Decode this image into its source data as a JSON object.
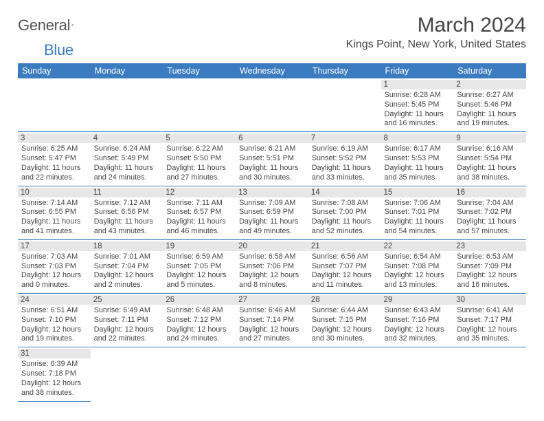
{
  "brand": {
    "general": "General",
    "blue": "Blue"
  },
  "title": "March 2024",
  "location": "Kings Point, New York, United States",
  "colors": {
    "header_bg": "#3b7bbf",
    "header_fg": "#ffffff",
    "rule": "#3b7bbf",
    "daynum_bg": "#e7e7e7",
    "text": "#444444"
  },
  "day_headers": [
    "Sunday",
    "Monday",
    "Tuesday",
    "Wednesday",
    "Thursday",
    "Friday",
    "Saturday"
  ],
  "weeks": [
    [
      null,
      null,
      null,
      null,
      null,
      {
        "n": "1",
        "sr": "Sunrise: 6:28 AM",
        "ss": "Sunset: 5:45 PM",
        "d1": "Daylight: 11 hours",
        "d2": "and 16 minutes."
      },
      {
        "n": "2",
        "sr": "Sunrise: 6:27 AM",
        "ss": "Sunset: 5:46 PM",
        "d1": "Daylight: 11 hours",
        "d2": "and 19 minutes."
      }
    ],
    [
      {
        "n": "3",
        "sr": "Sunrise: 6:25 AM",
        "ss": "Sunset: 5:47 PM",
        "d1": "Daylight: 11 hours",
        "d2": "and 22 minutes."
      },
      {
        "n": "4",
        "sr": "Sunrise: 6:24 AM",
        "ss": "Sunset: 5:49 PM",
        "d1": "Daylight: 11 hours",
        "d2": "and 24 minutes."
      },
      {
        "n": "5",
        "sr": "Sunrise: 6:22 AM",
        "ss": "Sunset: 5:50 PM",
        "d1": "Daylight: 11 hours",
        "d2": "and 27 minutes."
      },
      {
        "n": "6",
        "sr": "Sunrise: 6:21 AM",
        "ss": "Sunset: 5:51 PM",
        "d1": "Daylight: 11 hours",
        "d2": "and 30 minutes."
      },
      {
        "n": "7",
        "sr": "Sunrise: 6:19 AM",
        "ss": "Sunset: 5:52 PM",
        "d1": "Daylight: 11 hours",
        "d2": "and 33 minutes."
      },
      {
        "n": "8",
        "sr": "Sunrise: 6:17 AM",
        "ss": "Sunset: 5:53 PM",
        "d1": "Daylight: 11 hours",
        "d2": "and 35 minutes."
      },
      {
        "n": "9",
        "sr": "Sunrise: 6:16 AM",
        "ss": "Sunset: 5:54 PM",
        "d1": "Daylight: 11 hours",
        "d2": "and 38 minutes."
      }
    ],
    [
      {
        "n": "10",
        "sr": "Sunrise: 7:14 AM",
        "ss": "Sunset: 6:55 PM",
        "d1": "Daylight: 11 hours",
        "d2": "and 41 minutes."
      },
      {
        "n": "11",
        "sr": "Sunrise: 7:12 AM",
        "ss": "Sunset: 6:56 PM",
        "d1": "Daylight: 11 hours",
        "d2": "and 43 minutes."
      },
      {
        "n": "12",
        "sr": "Sunrise: 7:11 AM",
        "ss": "Sunset: 6:57 PM",
        "d1": "Daylight: 11 hours",
        "d2": "and 46 minutes."
      },
      {
        "n": "13",
        "sr": "Sunrise: 7:09 AM",
        "ss": "Sunset: 6:59 PM",
        "d1": "Daylight: 11 hours",
        "d2": "and 49 minutes."
      },
      {
        "n": "14",
        "sr": "Sunrise: 7:08 AM",
        "ss": "Sunset: 7:00 PM",
        "d1": "Daylight: 11 hours",
        "d2": "and 52 minutes."
      },
      {
        "n": "15",
        "sr": "Sunrise: 7:06 AM",
        "ss": "Sunset: 7:01 PM",
        "d1": "Daylight: 11 hours",
        "d2": "and 54 minutes."
      },
      {
        "n": "16",
        "sr": "Sunrise: 7:04 AM",
        "ss": "Sunset: 7:02 PM",
        "d1": "Daylight: 11 hours",
        "d2": "and 57 minutes."
      }
    ],
    [
      {
        "n": "17",
        "sr": "Sunrise: 7:03 AM",
        "ss": "Sunset: 7:03 PM",
        "d1": "Daylight: 12 hours",
        "d2": "and 0 minutes."
      },
      {
        "n": "18",
        "sr": "Sunrise: 7:01 AM",
        "ss": "Sunset: 7:04 PM",
        "d1": "Daylight: 12 hours",
        "d2": "and 2 minutes."
      },
      {
        "n": "19",
        "sr": "Sunrise: 6:59 AM",
        "ss": "Sunset: 7:05 PM",
        "d1": "Daylight: 12 hours",
        "d2": "and 5 minutes."
      },
      {
        "n": "20",
        "sr": "Sunrise: 6:58 AM",
        "ss": "Sunset: 7:06 PM",
        "d1": "Daylight: 12 hours",
        "d2": "and 8 minutes."
      },
      {
        "n": "21",
        "sr": "Sunrise: 6:56 AM",
        "ss": "Sunset: 7:07 PM",
        "d1": "Daylight: 12 hours",
        "d2": "and 11 minutes."
      },
      {
        "n": "22",
        "sr": "Sunrise: 6:54 AM",
        "ss": "Sunset: 7:08 PM",
        "d1": "Daylight: 12 hours",
        "d2": "and 13 minutes."
      },
      {
        "n": "23",
        "sr": "Sunrise: 6:53 AM",
        "ss": "Sunset: 7:09 PM",
        "d1": "Daylight: 12 hours",
        "d2": "and 16 minutes."
      }
    ],
    [
      {
        "n": "24",
        "sr": "Sunrise: 6:51 AM",
        "ss": "Sunset: 7:10 PM",
        "d1": "Daylight: 12 hours",
        "d2": "and 19 minutes."
      },
      {
        "n": "25",
        "sr": "Sunrise: 6:49 AM",
        "ss": "Sunset: 7:11 PM",
        "d1": "Daylight: 12 hours",
        "d2": "and 22 minutes."
      },
      {
        "n": "26",
        "sr": "Sunrise: 6:48 AM",
        "ss": "Sunset: 7:12 PM",
        "d1": "Daylight: 12 hours",
        "d2": "and 24 minutes."
      },
      {
        "n": "27",
        "sr": "Sunrise: 6:46 AM",
        "ss": "Sunset: 7:14 PM",
        "d1": "Daylight: 12 hours",
        "d2": "and 27 minutes."
      },
      {
        "n": "28",
        "sr": "Sunrise: 6:44 AM",
        "ss": "Sunset: 7:15 PM",
        "d1": "Daylight: 12 hours",
        "d2": "and 30 minutes."
      },
      {
        "n": "29",
        "sr": "Sunrise: 6:43 AM",
        "ss": "Sunset: 7:16 PM",
        "d1": "Daylight: 12 hours",
        "d2": "and 32 minutes."
      },
      {
        "n": "30",
        "sr": "Sunrise: 6:41 AM",
        "ss": "Sunset: 7:17 PM",
        "d1": "Daylight: 12 hours",
        "d2": "and 35 minutes."
      }
    ],
    [
      {
        "n": "31",
        "sr": "Sunrise: 6:39 AM",
        "ss": "Sunset: 7:18 PM",
        "d1": "Daylight: 12 hours",
        "d2": "and 38 minutes."
      },
      null,
      null,
      null,
      null,
      null,
      null
    ]
  ]
}
